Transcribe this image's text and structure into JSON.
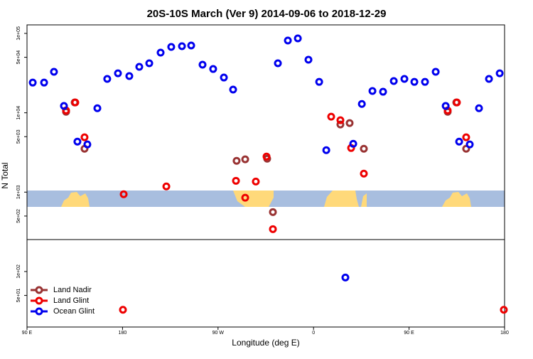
{
  "chart_data": {
    "type": "scatter",
    "title": "20S-10S March (Ver 9)   2014-09-06 to 2018-12-29",
    "x_label": "Longitude (deg E)",
    "y_label": "N Total",
    "xlim": [
      90,
      540
    ],
    "xticks": [
      {
        "value": 90,
        "label": "90 E"
      },
      {
        "value": 180,
        "label": "180"
      },
      {
        "value": 270,
        "label": "90 W"
      },
      {
        "value": 360,
        "label": "0"
      },
      {
        "value": 450,
        "label": "90 E"
      },
      {
        "value": 540,
        "label": "180"
      }
    ],
    "ylim": [
      20,
      128000
    ],
    "ylog": true,
    "yticks": [
      {
        "value": 50,
        "label": "5e+01"
      },
      {
        "value": 100,
        "label": "1e+02"
      },
      {
        "value": 500,
        "label": "5e+02"
      },
      {
        "value": 1000,
        "label": "1e+03"
      },
      {
        "value": 5000,
        "label": "5e+03"
      },
      {
        "value": 10000,
        "label": "1e+04"
      },
      {
        "value": 50000,
        "label": "5e+04"
      },
      {
        "value": 100000,
        "label": "1e+05"
      }
    ],
    "legend": "bottom-left",
    "series": [
      {
        "name": "Land Nadir",
        "color": "#993333",
        "x": [
          126.8,
          134.9,
          144.2,
          287.5,
          295.6,
          316.3,
          321.7,
          385.3,
          394,
          407.4,
          486.4,
          494.5,
          503.8
        ],
        "values": [
          10300,
          13500,
          3520,
          2480,
          2590,
          2640,
          561,
          7110,
          7410,
          3520,
          10300,
          13500,
          3520
        ]
      },
      {
        "name": "Land Glint",
        "color": "#ee0000",
        "x": [
          126.8,
          135.5,
          144.2,
          181.1,
          221.3,
          286.9,
          295.6,
          305.6,
          315.7,
          321.7,
          376.6,
          385.3,
          395.4,
          407.4,
          486.4,
          495.1,
          503.8,
          180.4,
          539.3
        ],
        "values": [
          10700,
          13500,
          4910,
          940,
          1180,
          1390,
          850,
          1360,
          2810,
          342,
          8930,
          8050,
          3600,
          1710,
          10700,
          13500,
          4910,
          33,
          33
        ]
      },
      {
        "name": "Ocean Glint",
        "color": "#0000ee",
        "x": [
          95.4,
          106.1,
          115.4,
          124.8,
          137.5,
          146.9,
          156.3,
          165.6,
          175.7,
          186.4,
          195.8,
          205.2,
          215.9,
          225.9,
          236,
          244.7,
          255.4,
          265.4,
          275.5,
          284.2,
          326.4,
          335.8,
          345.2,
          355.2,
          365.3,
          372,
          397.4,
          405.5,
          415.5,
          425.5,
          435.6,
          445.6,
          455,
          465,
          475.1,
          484.5,
          497.2,
          507.2,
          515.9,
          525.3,
          535.4,
          390
        ],
        "values": [
          24000,
          24000,
          32800,
          12200,
          4330,
          3990,
          11400,
          26700,
          31400,
          29000,
          37900,
          42000,
          57300,
          67600,
          69000,
          70400,
          40300,
          35600,
          27800,
          19600,
          42000,
          81300,
          86500,
          46600,
          24500,
          3380,
          4070,
          12900,
          18800,
          18400,
          25100,
          26700,
          24500,
          24500,
          32800,
          12200,
          4330,
          3990,
          11400,
          26700,
          31400,
          84
        ]
      }
    ]
  }
}
